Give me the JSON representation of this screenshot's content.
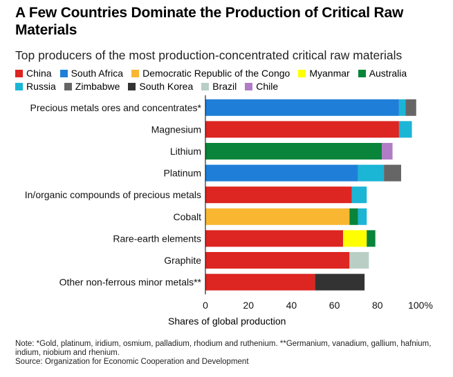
{
  "chart_data": {
    "type": "bar",
    "orientation": "horizontal",
    "stacked": true,
    "title": "A Few Countries Dominate the Production of Critical Raw Materials",
    "subtitle": "Top producers of the most production-concentrated critical raw materials",
    "xlabel": "Shares of global production",
    "xlim": [
      0,
      100
    ],
    "xticks": [
      "0",
      "20",
      "40",
      "60",
      "80",
      "100%"
    ],
    "legend": [
      {
        "name": "China",
        "color": "#dd2521"
      },
      {
        "name": "South Africa",
        "color": "#1f7fd8"
      },
      {
        "name": "Democratic Republic of the Congo",
        "color": "#f9b731"
      },
      {
        "name": "Myanmar",
        "color": "#ffff00"
      },
      {
        "name": "Australia",
        "color": "#09843a"
      },
      {
        "name": "Russia",
        "color": "#1bb5d6"
      },
      {
        "name": "Zimbabwe",
        "color": "#666666"
      },
      {
        "name": "South Korea",
        "color": "#333333"
      },
      {
        "name": "Brazil",
        "color": "#b9cfc6"
      },
      {
        "name": "Chile",
        "color": "#b07cc6"
      }
    ],
    "categories": [
      "Precious metals ores and concentrates*",
      "Magnesium",
      "Lithium",
      "Platinum",
      "In/organic compounds of precious metals",
      "Cobalt",
      "Rare-earth elements",
      "Graphite",
      "Other non-ferrous minor metals**"
    ],
    "bars": [
      [
        {
          "name": "South Africa",
          "value": 90
        },
        {
          "name": "Russia",
          "value": 3
        },
        {
          "name": "Zimbabwe",
          "value": 5
        }
      ],
      [
        {
          "name": "China",
          "value": 90
        },
        {
          "name": "Russia",
          "value": 6
        }
      ],
      [
        {
          "name": "Australia",
          "value": 82
        },
        {
          "name": "Chile",
          "value": 5
        }
      ],
      [
        {
          "name": "South Africa",
          "value": 71
        },
        {
          "name": "Russia",
          "value": 12
        },
        {
          "name": "Zimbabwe",
          "value": 8
        }
      ],
      [
        {
          "name": "China",
          "value": 68
        },
        {
          "name": "Russia",
          "value": 7
        }
      ],
      [
        {
          "name": "Democratic Republic of the Congo",
          "value": 67
        },
        {
          "name": "Australia",
          "value": 4
        },
        {
          "name": "Russia",
          "value": 4
        }
      ],
      [
        {
          "name": "China",
          "value": 64
        },
        {
          "name": "Myanmar",
          "value": 11
        },
        {
          "name": "Australia",
          "value": 4
        }
      ],
      [
        {
          "name": "China",
          "value": 67
        },
        {
          "name": "Brazil",
          "value": 9
        }
      ],
      [
        {
          "name": "China",
          "value": 51
        },
        {
          "name": "South Korea",
          "value": 23
        }
      ]
    ]
  },
  "notes": {
    "note": "Note: *Gold, platinum, iridium, osmium, palladium, rhodium and ruthenium. **Germanium, vanadium, gallium, hafnium, indium, niobium and rhenium.",
    "source": "Source: Organization for Economic Cooperation and Development"
  }
}
